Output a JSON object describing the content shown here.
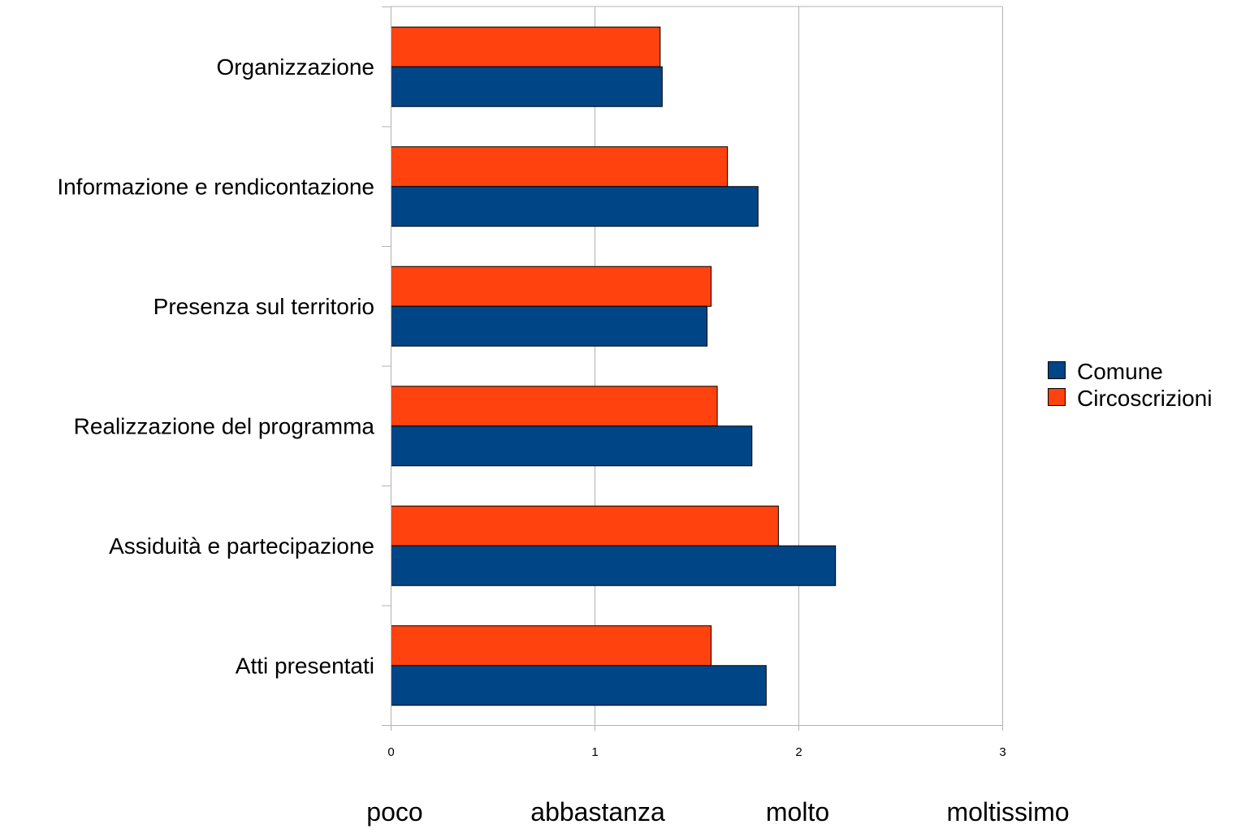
{
  "chart_data": {
    "type": "bar",
    "orientation": "horizontal",
    "categories": [
      "Organizzazione",
      "Informazione e rendicontazione",
      "Presenza sul territorio",
      "Realizzazione del programma",
      "Assiduità e partecipazione",
      "Atti presentati"
    ],
    "series": [
      {
        "name": "Comune",
        "color": "#004586",
        "values": [
          1.33,
          1.8,
          1.55,
          1.77,
          2.18,
          1.84
        ]
      },
      {
        "name": "Circoscrizioni",
        "color": "#ff420e",
        "values": [
          1.32,
          1.65,
          1.57,
          1.6,
          1.9,
          1.57
        ]
      }
    ],
    "xlim": [
      0,
      3
    ],
    "xticks": [
      "0",
      "1",
      "2",
      "3"
    ],
    "scale_labels": [
      "poco",
      "abbastanza",
      "molto",
      "moltissimo"
    ],
    "title": "",
    "xlabel": "",
    "ylabel": "",
    "grid": "vertical",
    "legend_position": "right"
  }
}
